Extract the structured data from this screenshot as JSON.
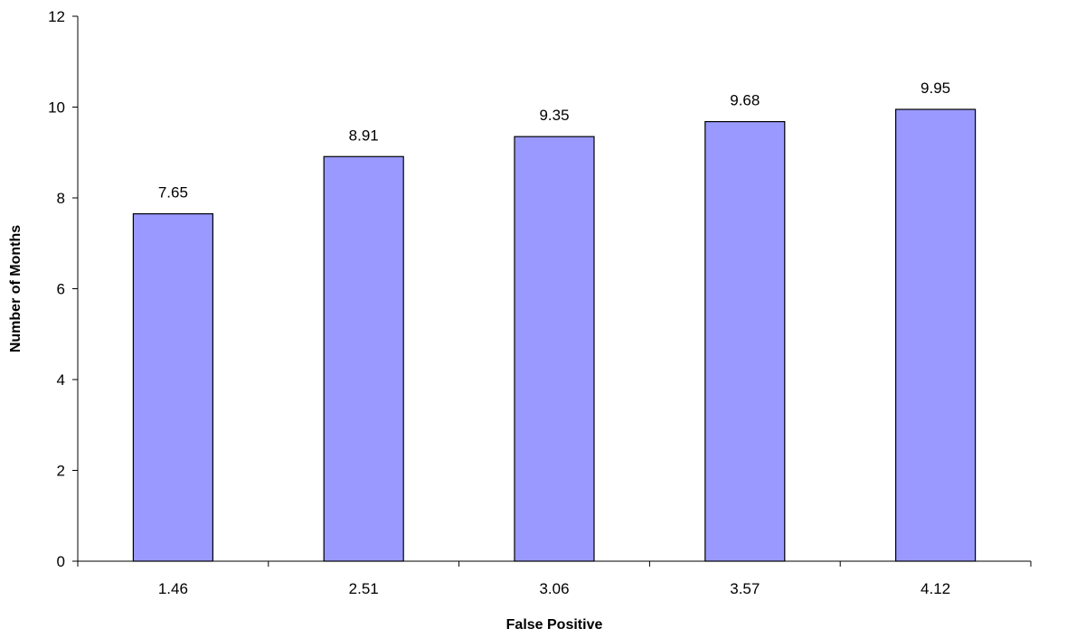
{
  "chart_data": {
    "type": "bar",
    "categories": [
      "1.46",
      "2.51",
      "3.06",
      "3.57",
      "4.12"
    ],
    "values": [
      7.65,
      8.91,
      9.35,
      9.68,
      9.95
    ],
    "data_labels": [
      "7.65",
      "8.91",
      "9.35",
      "9.68",
      "9.95"
    ],
    "title": "",
    "xlabel": "False Positive",
    "ylabel": "Number of Months",
    "ylim": [
      0,
      12
    ],
    "y_ticks": [
      "0",
      "2",
      "4",
      "6",
      "8",
      "10",
      "12"
    ],
    "grid": false,
    "legend": "none",
    "colors": {
      "bar_fill": "#9999ff",
      "bar_stroke": "#000000",
      "axis": "#000000",
      "text": "#000000"
    }
  }
}
